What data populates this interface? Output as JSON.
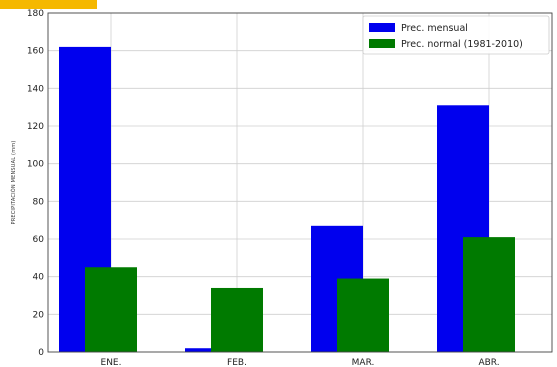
{
  "chart_data": {
    "type": "bar",
    "categories": [
      "ENE.",
      "FEB.",
      "MAR.",
      "ABR."
    ],
    "series": [
      {
        "name": "Prec. mensual",
        "values": [
          162,
          2,
          67,
          131
        ],
        "color": "#0000ee"
      },
      {
        "name": "Prec. normal (1981-2010)",
        "values": [
          45,
          34,
          39,
          61
        ],
        "color": "#007a00"
      }
    ],
    "ylabel": "PRECIPITACIÓN MENSUAL (mm)",
    "xlabel": "",
    "ylim": [
      0,
      180
    ],
    "yticks": [
      0,
      20,
      40,
      60,
      80,
      100,
      120,
      140,
      160,
      180
    ],
    "grid": true,
    "legend": "top-right"
  },
  "header_accent_color": "#f5b800"
}
